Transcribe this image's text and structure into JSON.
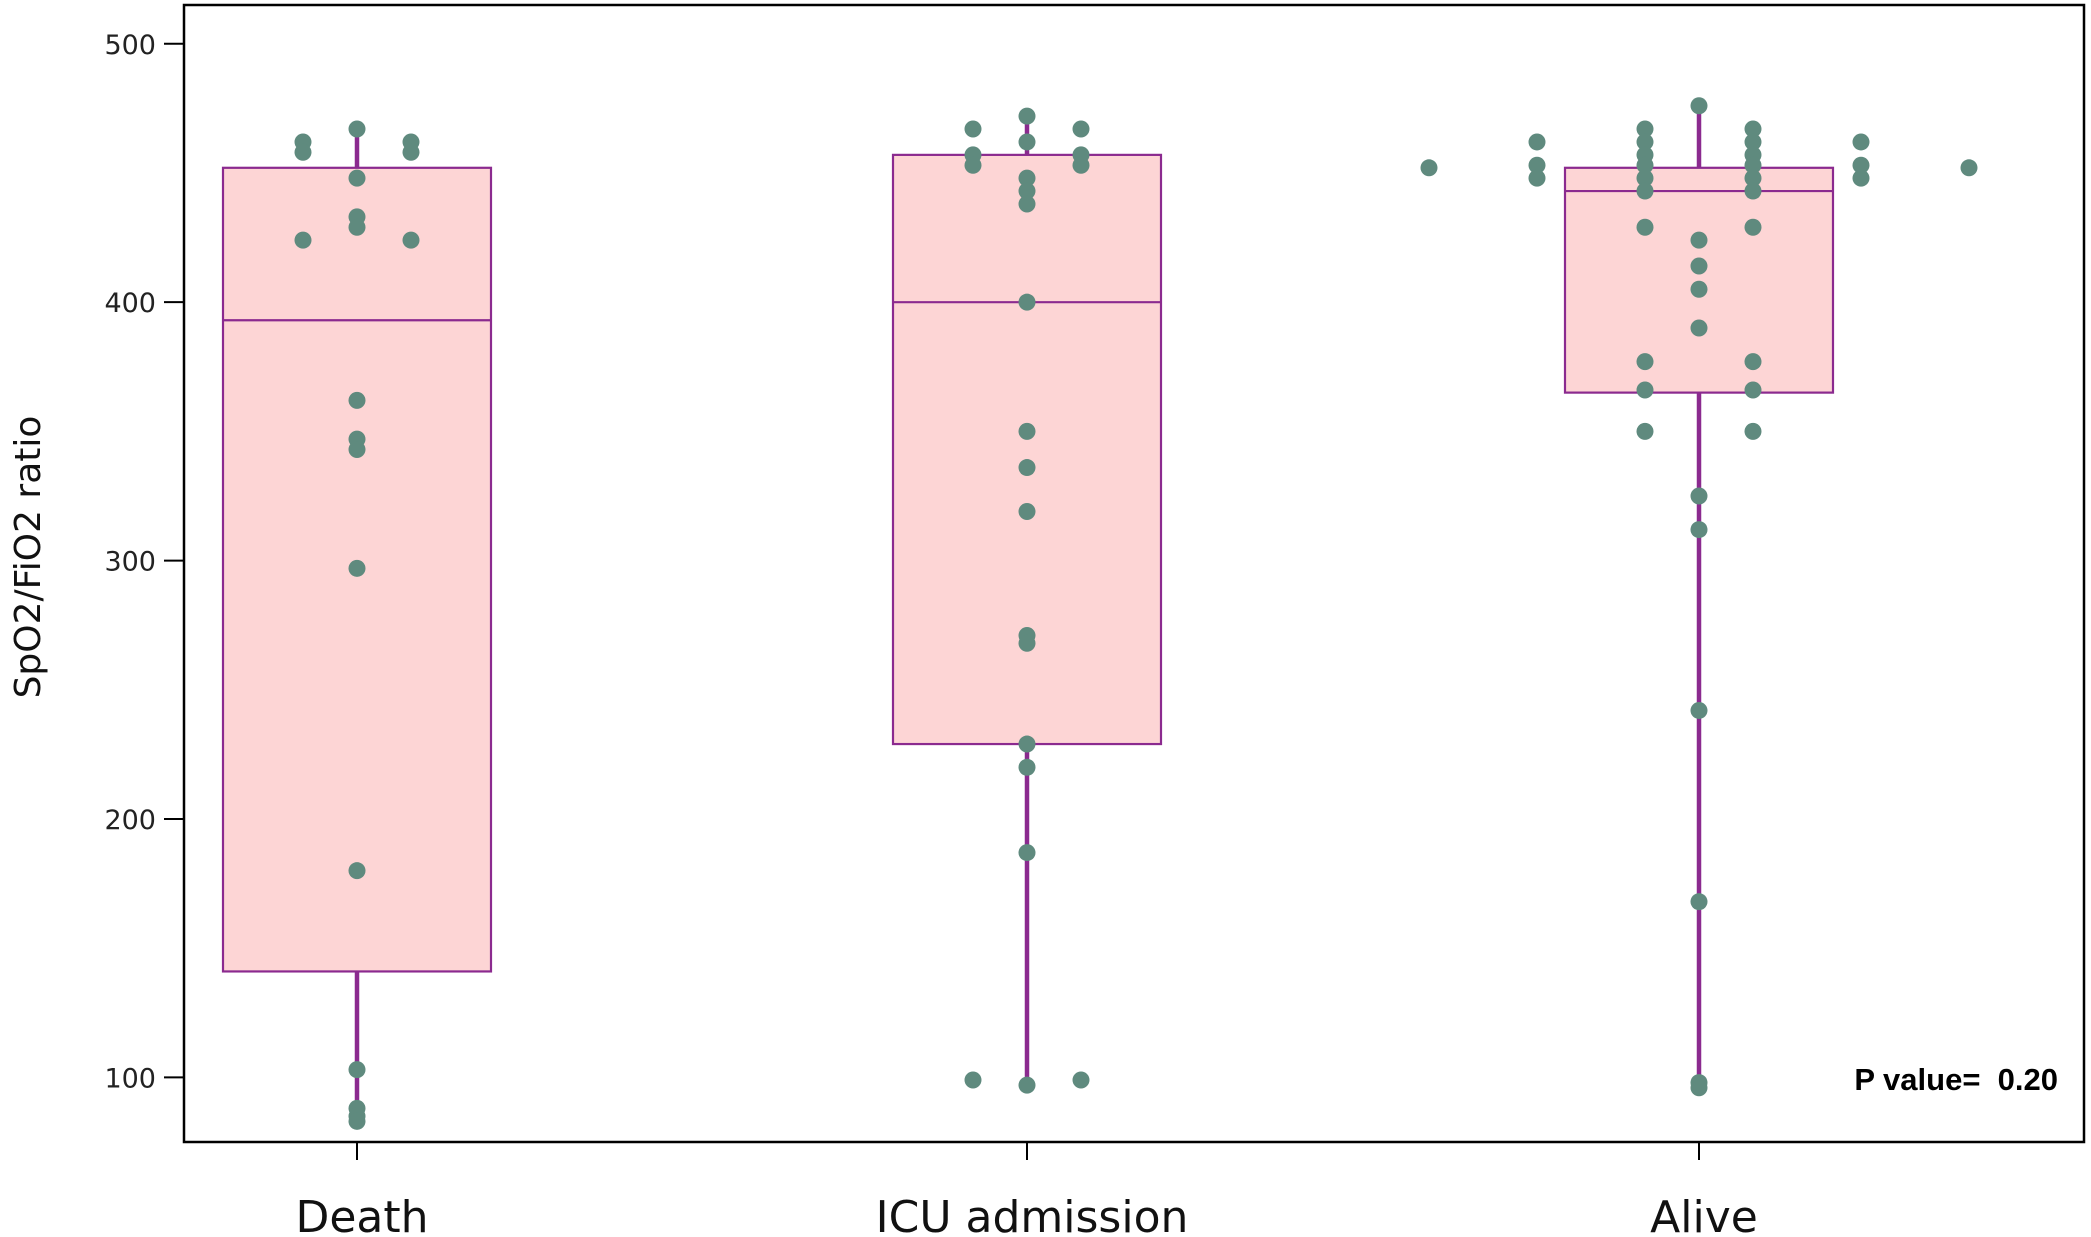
{
  "chart_data": {
    "type": "box",
    "ylabel": "SpO2/FiO2 ratio",
    "xlabel": "",
    "ylim": [
      75,
      515
    ],
    "yticks": [
      100,
      200,
      300,
      400,
      500
    ],
    "categories": [
      "Death",
      "ICU admission",
      "Alive"
    ],
    "annotation": "P value=  0.20",
    "grid": false,
    "colors": {
      "box_fill": "#fdd5d5",
      "box_stroke": "#8b2a8f",
      "whisker": "#8b2a8f",
      "points": "#5f8a7e"
    },
    "boxes": [
      {
        "name": "Death",
        "q1": 141,
        "median": 393,
        "q3": 452,
        "whisker_low": 83,
        "whisker_high": 467
      },
      {
        "name": "ICU admission",
        "q1": 229,
        "median": 400,
        "q3": 457,
        "whisker_low": 97,
        "whisker_high": 472
      },
      {
        "name": "Alive",
        "q1": 365,
        "median": 443,
        "q3": 452,
        "whisker_low": 96,
        "whisker_high": 476
      }
    ],
    "points": [
      {
        "group": "Death",
        "values": [
          {
            "y": 467,
            "o": 0
          },
          {
            "y": 462,
            "o": -1
          },
          {
            "y": 458,
            "o": -1
          },
          {
            "y": 462,
            "o": 1
          },
          {
            "y": 458,
            "o": 1
          },
          {
            "y": 448,
            "o": 0
          },
          {
            "y": 433,
            "o": 0
          },
          {
            "y": 429,
            "o": 0
          },
          {
            "y": 424,
            "o": -1
          },
          {
            "y": 424,
            "o": 1
          },
          {
            "y": 362,
            "o": 0
          },
          {
            "y": 347,
            "o": 0
          },
          {
            "y": 343,
            "o": 0
          },
          {
            "y": 297,
            "o": 0
          },
          {
            "y": 180,
            "o": 0
          },
          {
            "y": 103,
            "o": 0
          },
          {
            "y": 88,
            "o": 0
          },
          {
            "y": 85,
            "o": 0
          },
          {
            "y": 83,
            "o": 0
          }
        ]
      },
      {
        "group": "ICU admission",
        "values": [
          {
            "y": 472,
            "o": 0
          },
          {
            "y": 467,
            "o": -1
          },
          {
            "y": 467,
            "o": 1
          },
          {
            "y": 462,
            "o": 0
          },
          {
            "y": 457,
            "o": -1
          },
          {
            "y": 457,
            "o": 1
          },
          {
            "y": 453,
            "o": -1
          },
          {
            "y": 453,
            "o": 1
          },
          {
            "y": 448,
            "o": 0
          },
          {
            "y": 443,
            "o": 0
          },
          {
            "y": 438,
            "o": 0
          },
          {
            "y": 400,
            "o": 0
          },
          {
            "y": 350,
            "o": 0
          },
          {
            "y": 336,
            "o": 0
          },
          {
            "y": 319,
            "o": 0
          },
          {
            "y": 271,
            "o": 0
          },
          {
            "y": 268,
            "o": 0
          },
          {
            "y": 229,
            "o": 0
          },
          {
            "y": 220,
            "o": 0
          },
          {
            "y": 187,
            "o": 0
          },
          {
            "y": 99,
            "o": -1
          },
          {
            "y": 99,
            "o": 1
          },
          {
            "y": 97,
            "o": 0
          }
        ]
      },
      {
        "group": "Alive",
        "values": [
          {
            "y": 476,
            "o": 0
          },
          {
            "y": 467,
            "o": -1
          },
          {
            "y": 467,
            "o": 1
          },
          {
            "y": 462,
            "o": -1
          },
          {
            "y": 462,
            "o": 1
          },
          {
            "y": 462,
            "o": -3
          },
          {
            "y": 462,
            "o": 3
          },
          {
            "y": 457,
            "o": -1
          },
          {
            "y": 457,
            "o": 1
          },
          {
            "y": 453,
            "o": -1
          },
          {
            "y": 453,
            "o": 1
          },
          {
            "y": 453,
            "o": -3
          },
          {
            "y": 453,
            "o": 3
          },
          {
            "y": 452,
            "o": -5
          },
          {
            "y": 452,
            "o": 5
          },
          {
            "y": 448,
            "o": -1
          },
          {
            "y": 448,
            "o": 1
          },
          {
            "y": 448,
            "o": -3
          },
          {
            "y": 448,
            "o": 3
          },
          {
            "y": 443,
            "o": -1
          },
          {
            "y": 443,
            "o": 1
          },
          {
            "y": 429,
            "o": -1
          },
          {
            "y": 429,
            "o": 1
          },
          {
            "y": 424,
            "o": 0
          },
          {
            "y": 414,
            "o": 0
          },
          {
            "y": 405,
            "o": 0
          },
          {
            "y": 390,
            "o": 0
          },
          {
            "y": 377,
            "o": -1
          },
          {
            "y": 377,
            "o": 1
          },
          {
            "y": 366,
            "o": -1
          },
          {
            "y": 366,
            "o": 1
          },
          {
            "y": 350,
            "o": -1
          },
          {
            "y": 350,
            "o": 1
          },
          {
            "y": 325,
            "o": 0
          },
          {
            "y": 312,
            "o": 0
          },
          {
            "y": 242,
            "o": 0
          },
          {
            "y": 168,
            "o": 0
          },
          {
            "y": 98,
            "o": 0
          },
          {
            "y": 96,
            "o": 0
          }
        ]
      }
    ]
  }
}
